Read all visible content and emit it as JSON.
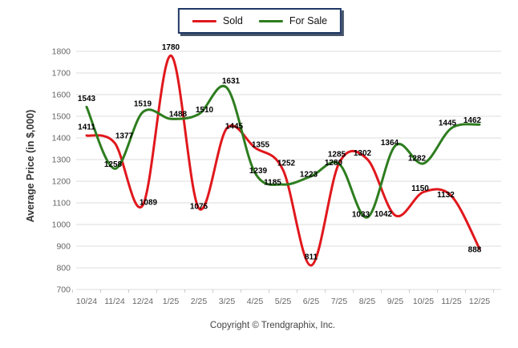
{
  "legend": {
    "items": [
      {
        "label": "Sold",
        "color": "#e0181d"
      },
      {
        "label": "For Sale",
        "color": "#2e7d1f"
      }
    ]
  },
  "footer": {
    "copyright": "Copyright © Trendgraphix, Inc."
  },
  "chart_data": {
    "type": "line",
    "categories": [
      "10/24",
      "11/24",
      "12/24",
      "1/25",
      "2/25",
      "3/25",
      "4/25",
      "5/25",
      "6/25",
      "7/25",
      "8/25",
      "9/25",
      "10/25",
      "11/25",
      "12/25"
    ],
    "series": [
      {
        "name": "Sold",
        "color": "#e0181d",
        "values": [
          1411,
          1377,
          1089,
          1780,
          1075,
          1445,
          1355,
          1252,
          811,
          1285,
          1302,
          1042,
          1150,
          1132,
          888
        ]
      },
      {
        "name": "For Sale",
        "color": "#2e7d1f",
        "values": [
          1543,
          1258,
          1519,
          1488,
          1510,
          1631,
          1239,
          1185,
          1223,
          1280,
          1033,
          1364,
          1282,
          1445,
          1462
        ]
      }
    ],
    "title": "",
    "xlabel": "",
    "ylabel": "Average Price (in $,000)",
    "ylim": [
      700,
      1800
    ],
    "ytick_step": 100,
    "grid": "horizontal",
    "legend_position": "top-center",
    "line_style": "smooth"
  }
}
